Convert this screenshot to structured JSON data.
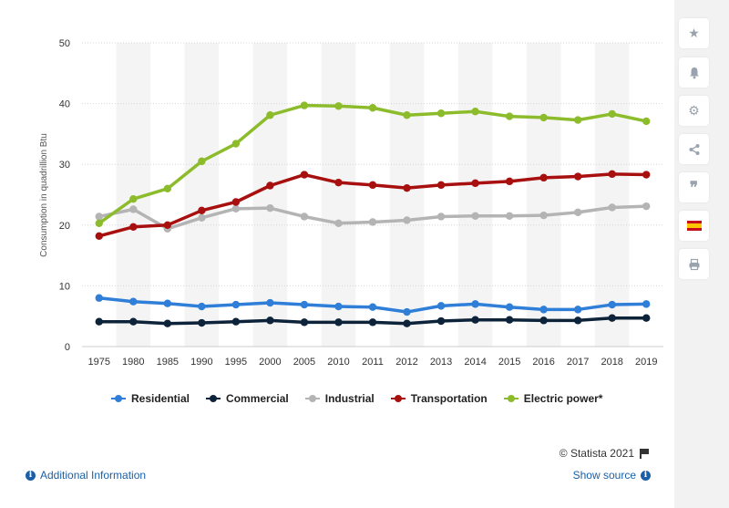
{
  "chart_data": {
    "type": "line",
    "title": "",
    "xlabel": "",
    "ylabel": "Consumption in quadrillion Btu",
    "ylim": [
      0,
      50
    ],
    "yticks": [
      0,
      10,
      20,
      30,
      40,
      50
    ],
    "grid": true,
    "legend_position": "bottom",
    "categories": [
      "1975",
      "1980",
      "1985",
      "1990",
      "1995",
      "2000",
      "2005",
      "2010",
      "2011",
      "2012",
      "2013",
      "2014",
      "2015",
      "2016",
      "2017",
      "2018",
      "2019"
    ],
    "series": [
      {
        "name": "Residential",
        "color": "#2f7ed8",
        "values": [
          8.0,
          7.4,
          7.1,
          6.6,
          6.9,
          7.2,
          6.9,
          6.6,
          6.5,
          5.7,
          6.7,
          7.0,
          6.5,
          6.1,
          6.1,
          6.9,
          7.0
        ]
      },
      {
        "name": "Commercial",
        "color": "#0d233a",
        "values": [
          4.1,
          4.1,
          3.8,
          3.9,
          4.1,
          4.3,
          4.0,
          4.0,
          4.0,
          3.8,
          4.2,
          4.4,
          4.4,
          4.3,
          4.3,
          4.7,
          4.7
        ]
      },
      {
        "name": "Industrial",
        "color": "#b4b4b4",
        "values": [
          21.4,
          22.6,
          19.4,
          21.2,
          22.7,
          22.8,
          21.4,
          20.3,
          20.5,
          20.8,
          21.4,
          21.5,
          21.5,
          21.6,
          22.1,
          22.9,
          23.1
        ]
      },
      {
        "name": "Transportation",
        "color": "#a80f0f",
        "values": [
          18.2,
          19.7,
          20.0,
          22.4,
          23.8,
          26.5,
          28.3,
          27.0,
          26.6,
          26.1,
          26.6,
          26.9,
          27.2,
          27.8,
          28.0,
          28.4,
          28.3
        ]
      },
      {
        "name": "Electric power*",
        "color": "#8cbc2b",
        "values": [
          20.3,
          24.3,
          26.0,
          30.5,
          33.4,
          38.1,
          39.7,
          39.6,
          39.3,
          38.1,
          38.4,
          38.7,
          37.9,
          37.7,
          37.3,
          38.3,
          37.1
        ]
      }
    ]
  },
  "footer": {
    "credit": "© Statista 2021",
    "additional_info": "Additional Information",
    "show_source": "Show source"
  },
  "sidebar": {
    "icons": [
      "star-icon",
      "bell-icon",
      "gear-icon",
      "share-icon",
      "quote-icon",
      "flag-spain-icon",
      "print-icon"
    ],
    "flag_colors": {
      "red": "#c60b1e",
      "yellow": "#ffc400"
    }
  }
}
